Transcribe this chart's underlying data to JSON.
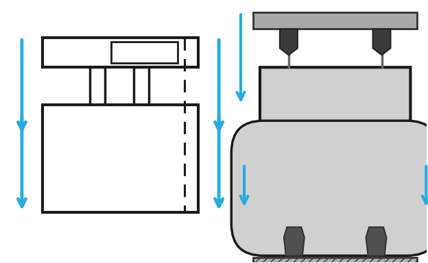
{
  "bg_color": "#ffffff",
  "arrow_color": "#29abe2",
  "line_color": "#1a1a1a",
  "light_gray": "#d0d0d0",
  "dark_gray": "#555555",
  "beam_gray": "#a0a0a0",
  "mount_dark": "#444444"
}
